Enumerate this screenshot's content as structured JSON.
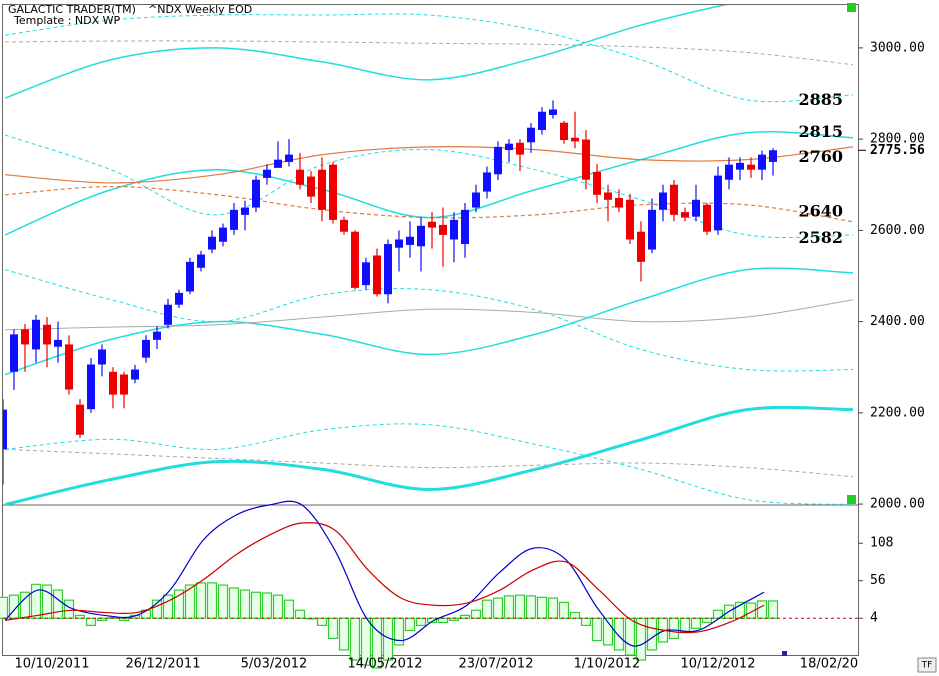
{
  "chart_data": {
    "type": "candlestick",
    "title": "GALACTIC TRADER(TM)",
    "subtitle": "^NDX Weekly EOD",
    "template": "Template : NDX WP",
    "corner_label": "TF",
    "up_color": "#1010ff",
    "down_color": "#ee0000",
    "ylim": [
      1998,
      3094
    ],
    "yticks": [
      {
        "value": 3000,
        "label": "3000.00"
      },
      {
        "value": 2800,
        "label": "2800.00"
      },
      {
        "value": 2600,
        "label": "2600.00"
      },
      {
        "value": 2400,
        "label": "2400.00"
      },
      {
        "value": 2200,
        "label": "2200.00"
      },
      {
        "value": 2000,
        "label": "2000.00"
      }
    ],
    "last_price": 2775.56,
    "date_labels": [
      "10/10/2011",
      "26/12/2011",
      "5/03/2012",
      "14/05/2012",
      "23/07/2012",
      "1/10/2012",
      "10/12/2012",
      "18/02/20"
    ],
    "candles": {
      "open": [
        2120,
        2290,
        2383,
        2339,
        2393,
        2345,
        2350,
        2218,
        2208,
        2306,
        2290,
        2284,
        2273,
        2321,
        2360,
        2393,
        2437,
        2466,
        2518,
        2558,
        2575,
        2601,
        2634,
        2650,
        2715,
        2737,
        2750,
        2733,
        2718,
        2733,
        2744,
        2623,
        2597,
        2480,
        2545,
        2460,
        2562,
        2568,
        2565,
        2619,
        2612,
        2580,
        2570,
        2650,
        2685,
        2723,
        2776,
        2792,
        2793,
        2820,
        2853,
        2836,
        2803,
        2799,
        2728,
        2683,
        2671,
        2667,
        2597,
        2558,
        2645,
        2700,
        2640,
        2630,
        2656,
        2600,
        2711,
        2733,
        2744,
        2733,
        2750
      ],
      "high": [
        2230,
        2383,
        2395,
        2415,
        2410,
        2400,
        2370,
        2230,
        2320,
        2350,
        2300,
        2290,
        2305,
        2370,
        2390,
        2450,
        2470,
        2540,
        2555,
        2600,
        2615,
        2660,
        2665,
        2720,
        2745,
        2795,
        2800,
        2770,
        2730,
        2760,
        2750,
        2630,
        2600,
        2540,
        2560,
        2580,
        2600,
        2620,
        2630,
        2640,
        2650,
        2640,
        2660,
        2700,
        2740,
        2795,
        2800,
        2800,
        2835,
        2870,
        2885,
        2840,
        2860,
        2820,
        2745,
        2700,
        2690,
        2680,
        2620,
        2670,
        2700,
        2710,
        2650,
        2700,
        2660,
        2740,
        2760,
        2760,
        2760,
        2775,
        2780
      ],
      "low": [
        2043,
        2250,
        2290,
        2310,
        2300,
        2310,
        2240,
        2145,
        2200,
        2280,
        2210,
        2210,
        2265,
        2310,
        2340,
        2385,
        2430,
        2460,
        2510,
        2550,
        2565,
        2590,
        2600,
        2640,
        2700,
        2740,
        2740,
        2690,
        2660,
        2620,
        2615,
        2590,
        2470,
        2470,
        2455,
        2440,
        2510,
        2540,
        2510,
        2560,
        2520,
        2530,
        2540,
        2640,
        2670,
        2710,
        2750,
        2730,
        2770,
        2810,
        2845,
        2790,
        2780,
        2690,
        2660,
        2620,
        2640,
        2570,
        2488,
        2550,
        2620,
        2620,
        2620,
        2620,
        2590,
        2590,
        2690,
        2710,
        2715,
        2710,
        2720
      ],
      "close": [
        2207,
        2372,
        2350,
        2404,
        2350,
        2360,
        2251,
        2152,
        2306,
        2339,
        2240,
        2240,
        2295,
        2360,
        2378,
        2437,
        2463,
        2531,
        2547,
        2586,
        2606,
        2645,
        2650,
        2711,
        2733,
        2755,
        2766,
        2700,
        2674,
        2645,
        2623,
        2597,
        2474,
        2530,
        2460,
        2570,
        2580,
        2586,
        2610,
        2606,
        2590,
        2623,
        2645,
        2683,
        2727,
        2783,
        2790,
        2766,
        2825,
        2860,
        2865,
        2798,
        2795,
        2711,
        2678,
        2667,
        2650,
        2580,
        2531,
        2645,
        2683,
        2634,
        2628,
        2667,
        2597,
        2720,
        2744,
        2748,
        2733,
        2766,
        2775.56
      ]
    },
    "overlays": [
      {
        "color": "#22dddd",
        "width": 1.5,
        "dash": false,
        "values": [
          2890,
          2974,
          3000,
          2969,
          2930,
          2978,
          3050,
          3105,
          3149
        ]
      },
      {
        "color": "#22dddd",
        "width": 1.5,
        "dash": false,
        "values": [
          2590,
          2689,
          2733,
          2689,
          2628,
          2689,
          2755,
          2814,
          2803
        ]
      },
      {
        "color": "#22dddd",
        "width": 1.5,
        "dash": false,
        "values": [
          2284,
          2361,
          2400,
          2372,
          2328,
          2372,
          2448,
          2514,
          2507
        ]
      },
      {
        "color": "#22dddd",
        "width": 3,
        "dash": false,
        "values": [
          1999,
          2054,
          2093,
          2076,
          2032,
          2076,
          2141,
          2207,
          2207
        ]
      },
      {
        "color": "#22dddd",
        "width": 1,
        "dash": true,
        "values": [
          3028,
          3061,
          3072,
          3072,
          3072,
          3039,
          2974,
          2886,
          2897
        ]
      },
      {
        "color": "#22dddd",
        "width": 1,
        "dash": true,
        "values": [
          2809,
          2733,
          2634,
          2744,
          2777,
          2733,
          2667,
          2590,
          2590
        ]
      },
      {
        "color": "#22dddd",
        "width": 1,
        "dash": true,
        "values": [
          2514,
          2448,
          2400,
          2459,
          2470,
          2426,
          2339,
          2295,
          2295
        ]
      },
      {
        "color": "#22dddd",
        "width": 1,
        "dash": true,
        "values": [
          2120,
          2142,
          2120,
          2163,
          2174,
          2131,
          2076,
          2010,
          1999
        ]
      },
      {
        "color": "#aaaaaa",
        "width": 1,
        "dash": true,
        "values": [
          3013,
          3015,
          3015,
          3013,
          3010,
          3008,
          3002,
          2990,
          2963
        ]
      },
      {
        "color": "#aaaaaa",
        "width": 1,
        "dash": false,
        "values": [
          2382,
          2388,
          2393,
          2410,
          2427,
          2420,
          2400,
          2410,
          2448
        ]
      },
      {
        "color": "#aaaaaa",
        "width": 1,
        "dash": true,
        "values": [
          2120,
          2110,
          2100,
          2090,
          2080,
          2085,
          2090,
          2080,
          2060
        ]
      },
      {
        "color": "#e07a40",
        "width": 1.2,
        "dash": false,
        "values": [
          2722,
          2704,
          2722,
          2766,
          2783,
          2777,
          2755,
          2755,
          2783
        ]
      },
      {
        "color": "#e07a40",
        "width": 1.2,
        "dash": true,
        "values": [
          2678,
          2696,
          2678,
          2645,
          2628,
          2634,
          2656,
          2656,
          2619
        ]
      }
    ],
    "annotations": [
      {
        "value": 2885,
        "color": "#888888"
      },
      {
        "value": 2815,
        "color": "#000080"
      },
      {
        "value": 2760,
        "color": "#dd0000"
      },
      {
        "value": 2640,
        "color": "#dd0000"
      },
      {
        "value": 2582,
        "color": "#000080"
      }
    ],
    "indicator": {
      "ylim": [
        -47,
        161
      ],
      "yticks": [
        108,
        56,
        4
      ],
      "reference_line": 4,
      "histogram": {
        "color": "#33cc33",
        "values": [
          33,
          36,
          40,
          51,
          50,
          43,
          29,
          8,
          -6,
          1,
          5,
          1,
          8,
          15,
          29,
          36,
          43,
          50,
          53,
          53,
          50,
          46,
          43,
          40,
          39,
          36,
          29,
          15,
          3,
          -6,
          -24,
          -40,
          -54,
          -61,
          -65,
          -54,
          -33,
          -13,
          -6,
          -2,
          -2,
          1,
          8,
          15,
          29,
          32,
          35,
          36,
          35,
          33,
          32,
          26,
          12,
          -6,
          -27,
          -33,
          -40,
          -47,
          -54,
          -40,
          -29,
          -24,
          -15,
          -10,
          -2,
          15,
          22,
          26,
          25,
          28,
          28
        ]
      },
      "series": [
        {
          "color": "#0000cc",
          "values": [
            1.2,
            43,
            18,
            8,
            8,
            43,
            112,
            147,
            161,
            161,
            98,
            1,
            -27,
            1,
            22,
            68,
            101,
            85,
            15,
            -34,
            -13,
            -13,
            15,
            40
          ]
        },
        {
          "color": "#cc0000",
          "values": [
            1,
            8,
            15,
            12,
            12,
            29,
            57,
            92,
            119,
            136,
            126,
            71,
            32,
            22,
            25,
            43,
            71,
            82,
            43,
            1,
            -13,
            -15,
            -1,
            22
          ]
        }
      ]
    }
  }
}
